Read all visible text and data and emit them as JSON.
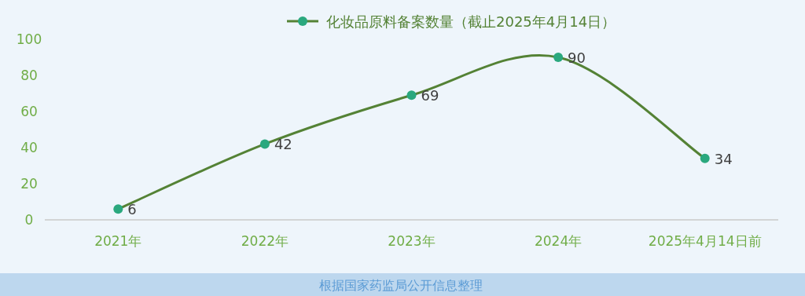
{
  "chart_data": {
    "type": "line",
    "categories": [
      "2021年",
      "2022年",
      "2023年",
      "2024年",
      "2025年4月14日前"
    ],
    "series": [
      {
        "name": "化妆品原料备案数量（截止2025年4月14日）",
        "color": "#548235",
        "colors": [
          "#2aa87e",
          "#2aa87e",
          "#2aa87e",
          "#2aa87e",
          "#2aa87e"
        ],
        "values": [
          6,
          42,
          69,
          90,
          34
        ]
      }
    ],
    "ylim": [
      0,
      100
    ],
    "yticks": [
      0,
      20,
      40,
      60,
      80,
      100
    ],
    "grid": false,
    "legend": "top",
    "marker": "circle",
    "data_labels": true,
    "annotations": [
      "根据国家药监局公开信息整理"
    ]
  }
}
